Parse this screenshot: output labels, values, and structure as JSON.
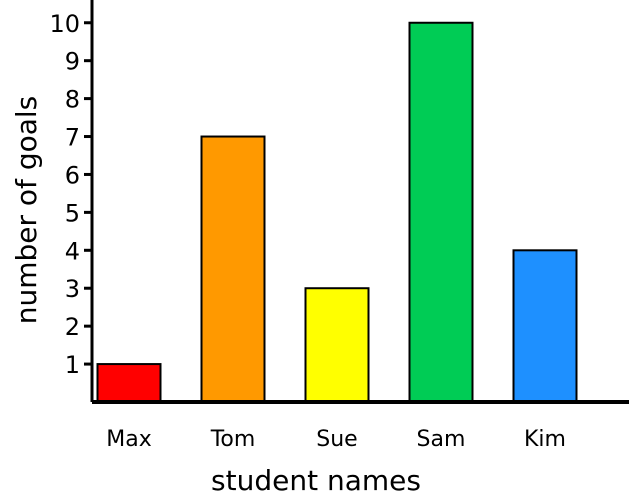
{
  "chart_data": {
    "type": "bar",
    "title": "",
    "xlabel": "student names",
    "ylabel": "number of goals",
    "categories": [
      "Max",
      "Tom",
      "Sue",
      "Sam",
      "Kim"
    ],
    "values": [
      1,
      7,
      3,
      10,
      4
    ],
    "colors": [
      "#ff0000",
      "#ff9900",
      "#ffff00",
      "#00cc55",
      "#1e90ff"
    ],
    "ylim": [
      0,
      10.6
    ],
    "yticks": [
      1,
      2,
      3,
      4,
      5,
      6,
      7,
      8,
      9,
      10
    ],
    "grid": false,
    "legend": "none"
  }
}
